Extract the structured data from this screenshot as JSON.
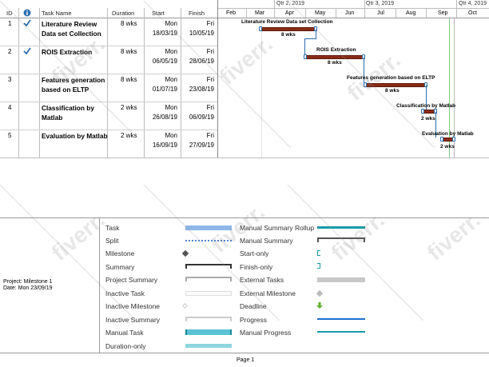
{
  "columns": {
    "id": "ID",
    "task_name": "Task Name",
    "duration": "Duration",
    "start": "Start",
    "finish": "Finish"
  },
  "timeline": {
    "quarters": [
      "Qtr 2, 2019",
      "Qtr 3, 2019",
      "Qtr 4, 2019"
    ],
    "months": [
      "Feb",
      "Mar",
      "Apr",
      "May",
      "Jun",
      "Jul",
      "Aug",
      "Sep",
      "Oct"
    ]
  },
  "tasks": [
    {
      "id": "1",
      "name_line1": "Literature Review",
      "name_line2": "Data set Collection",
      "duration": "8 wks",
      "start_day": "Mon",
      "start_date": "18/03/19",
      "finish_day": "Fri",
      "finish_date": "10/05/19",
      "bar_label": "Literature Review Data set Collection",
      "bar_duration": "8 wks"
    },
    {
      "id": "2",
      "name_line1": "ROIS Extraction",
      "name_line2": "",
      "duration": "8 wks",
      "start_day": "Mon",
      "start_date": "06/05/19",
      "finish_day": "Fri",
      "finish_date": "28/06/19",
      "bar_label": "ROIS Extraction",
      "bar_duration": "8 wks"
    },
    {
      "id": "3",
      "name_line1": "Features generation",
      "name_line2": "based on ELTP",
      "duration": "8 wks",
      "start_day": "Mon",
      "start_date": "01/07/19",
      "finish_day": "Fri",
      "finish_date": "23/08/19",
      "bar_label": "Features generation based on ELTP",
      "bar_duration": "8 wks"
    },
    {
      "id": "4",
      "name_line1": "Classification by",
      "name_line2": "Matlab",
      "duration": "2 wks",
      "start_day": "Mon",
      "start_date": "26/08/19",
      "finish_day": "Fri",
      "finish_date": "06/09/19",
      "bar_label": "Classification by Matlab",
      "bar_duration": "2 wks"
    },
    {
      "id": "5",
      "name_line1": "Evaluation by Matlab",
      "name_line2": "",
      "duration": "2 wks",
      "start_day": "Mon",
      "start_date": "16/09/19",
      "finish_day": "Fri",
      "finish_date": "27/09/19",
      "bar_label": "Evaluation by Matlab",
      "bar_duration": "2 wks"
    }
  ],
  "project_info": {
    "project": "Project: Milestone 1",
    "date": "Date: Mon 23/09/19"
  },
  "legend": {
    "left": [
      "Task",
      "Split",
      "Milestone",
      "Summary",
      "Project Summary",
      "Inactive Task",
      "Inactive Milestone",
      "Inactive Summary",
      "Manual Task",
      "Duration-only"
    ],
    "right": [
      "Manual Summary Rollup",
      "Manual Summary",
      "Start-only",
      "Finish-only",
      "External Tasks",
      "External Milestone",
      "Deadline",
      "Progress",
      "Manual Progress"
    ]
  },
  "footer": {
    "page": "Page 1"
  },
  "watermark": "fiverr.",
  "colors": {
    "bar_fill": "#8b2c16",
    "task_legend": "#8fb6e8",
    "manual_task": "#5cc3d3",
    "progress": "#1f6fd1",
    "manual_progress": "#1a9aa8",
    "deadline": "#5fb02f",
    "check": "#2b6fb0",
    "info_icon": "#2b6fb0"
  }
}
